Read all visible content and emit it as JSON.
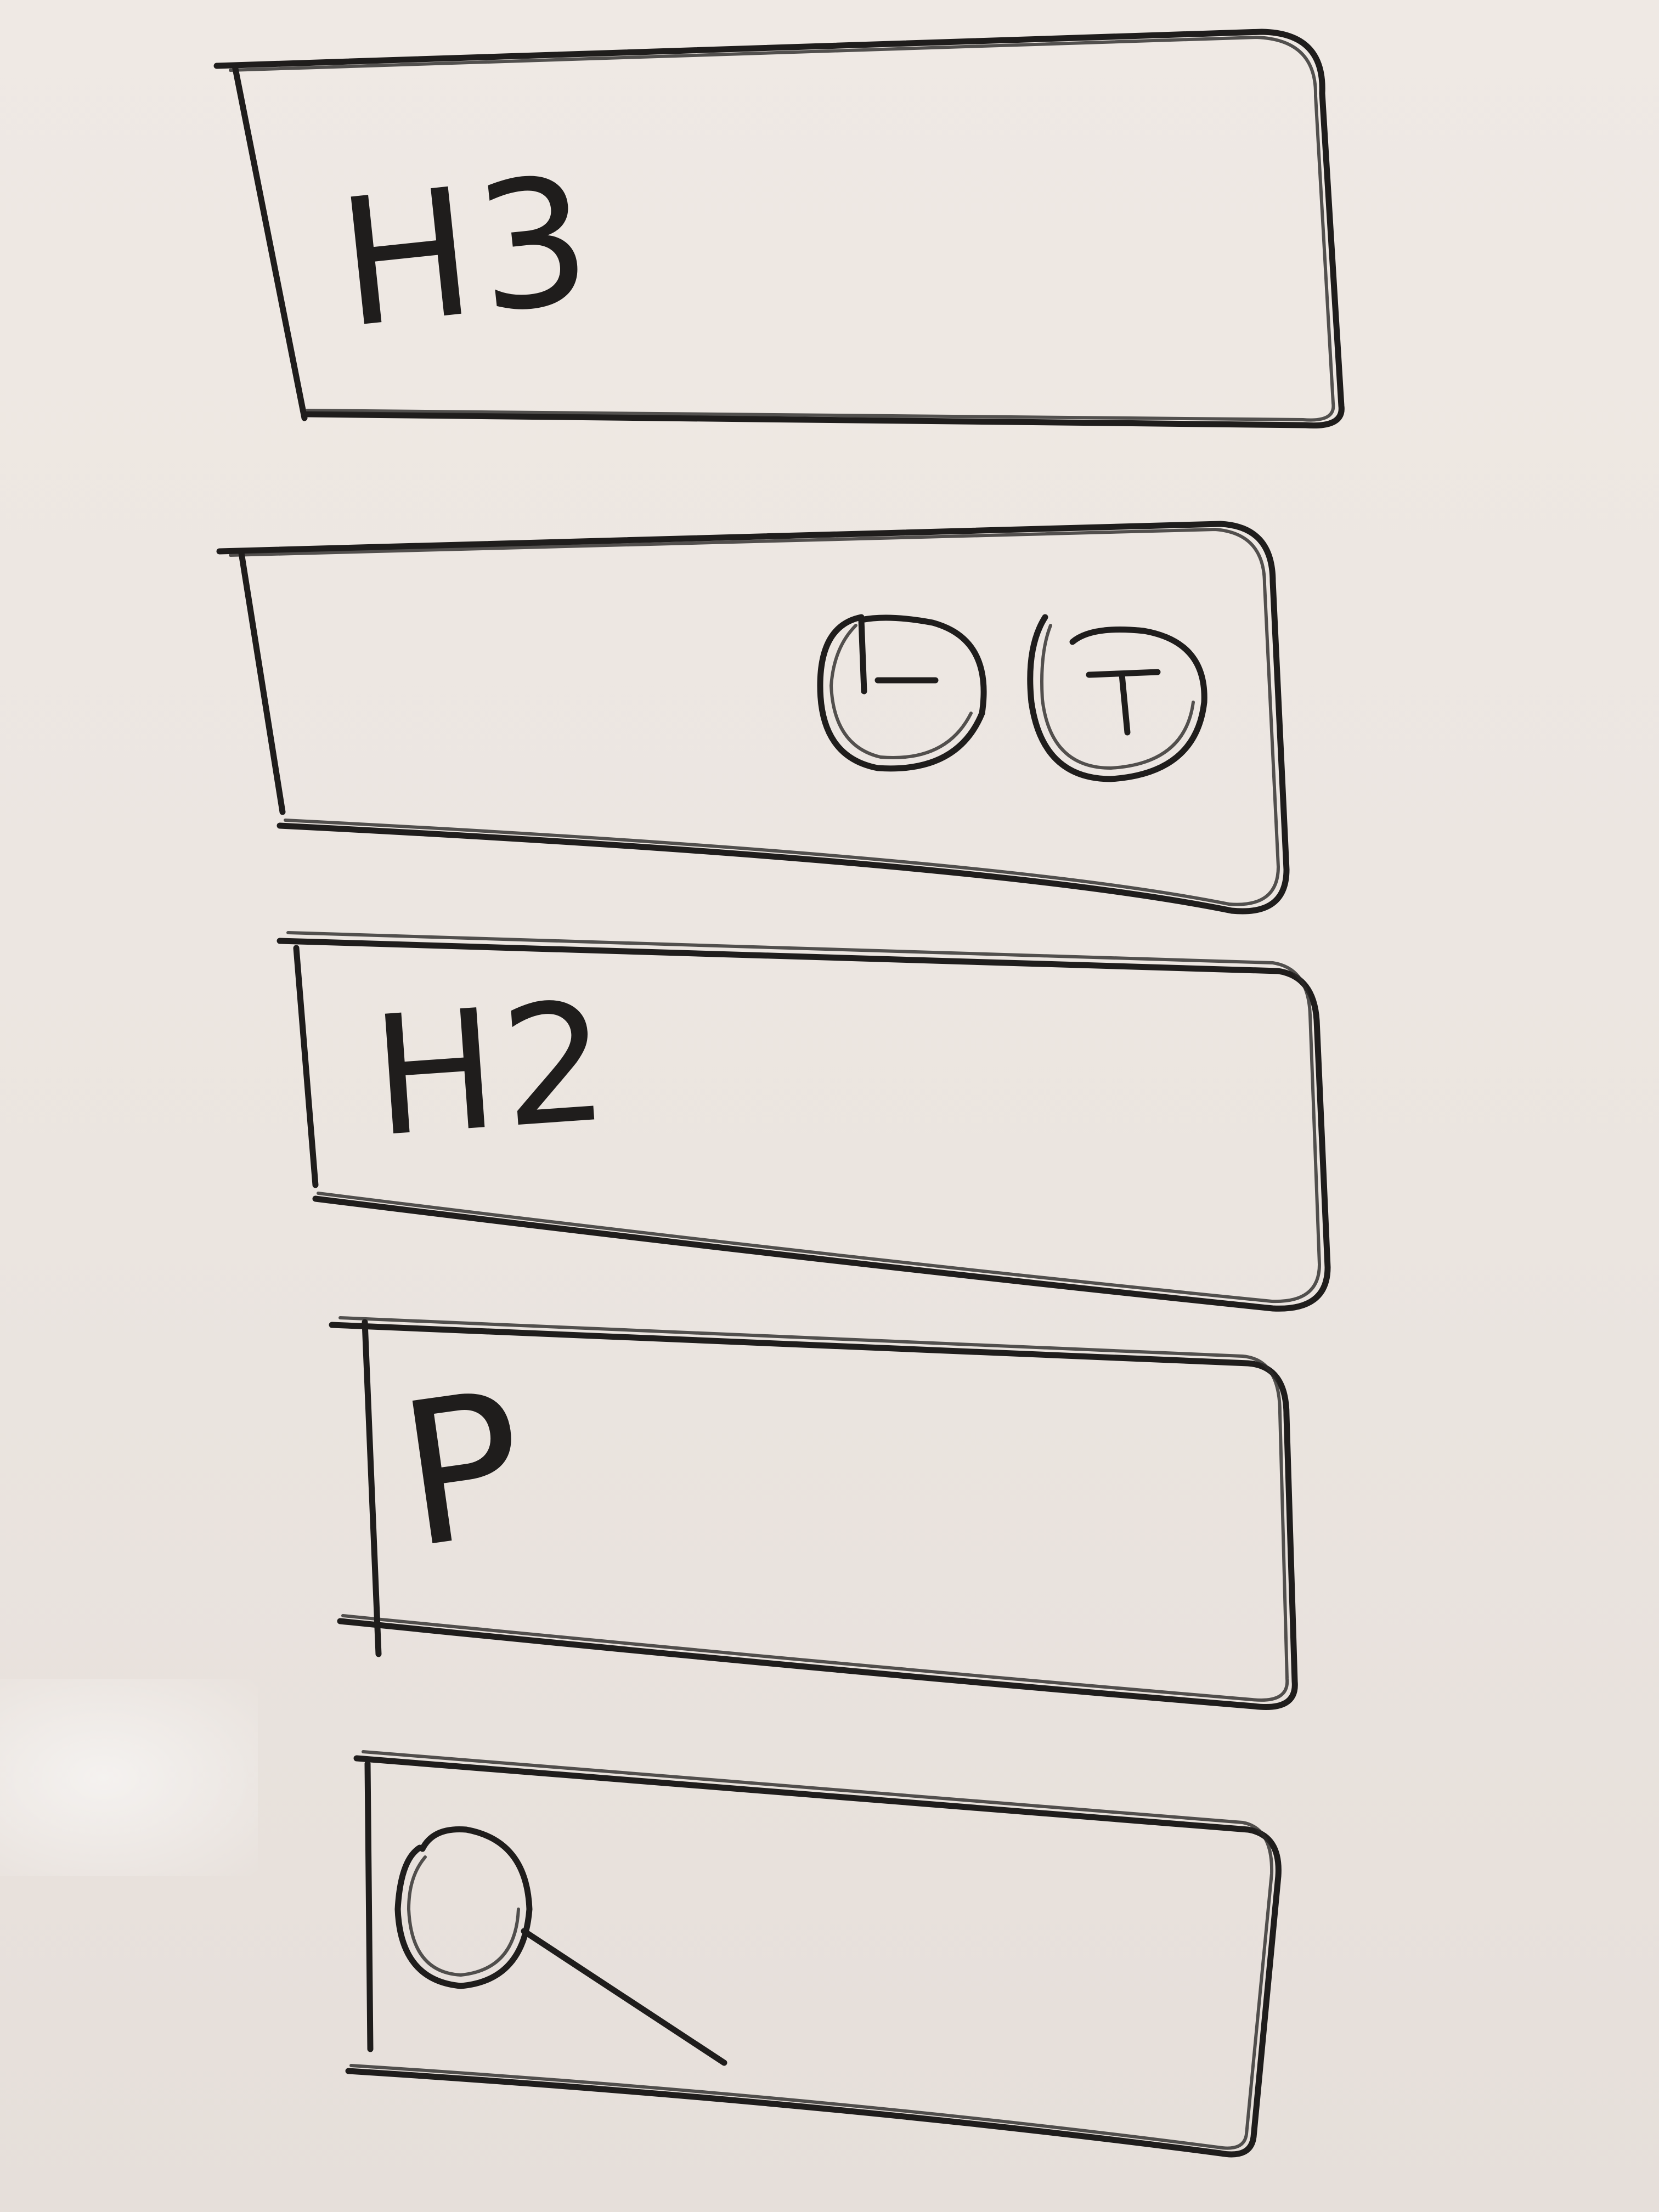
{
  "sketch": {
    "boxes": [
      {
        "id": "box-1",
        "label": "H3"
      },
      {
        "id": "box-2",
        "label": "",
        "icons": [
          "minus-circle-icon",
          "plus-circle-icon"
        ]
      },
      {
        "id": "box-3",
        "label": "H2"
      },
      {
        "id": "box-4",
        "label": "P"
      },
      {
        "id": "box-5",
        "label": "",
        "icons": [
          "search-icon"
        ]
      }
    ]
  },
  "colors": {
    "whiteboard": "#ece6e1",
    "marker": "#1f1d1c"
  }
}
